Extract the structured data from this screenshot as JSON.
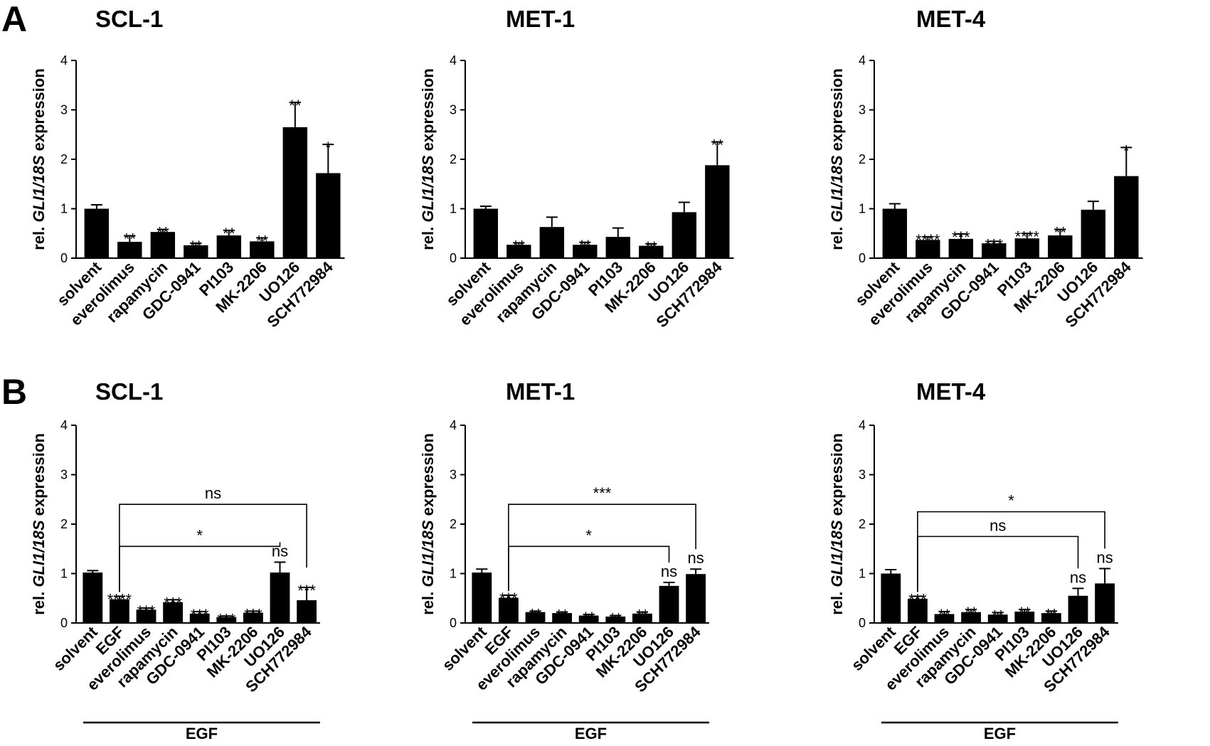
{
  "panels": [
    {
      "letter": "A"
    },
    {
      "letter": "B"
    }
  ],
  "chart_data": [
    {
      "panel": "A",
      "type": "bar",
      "title": "SCL-1",
      "ylabel_prefix": "rel. ",
      "ylabel_italic": "GLI1/18S",
      "ylabel_suffix": " expression",
      "xlabel": "",
      "ylim": [
        0,
        4
      ],
      "yticks": [
        "0",
        "1",
        "2",
        "3",
        "4"
      ],
      "categories": [
        "solvent",
        "everolimus",
        "rapamycin",
        "GDC-0941",
        "PI103",
        "MK-2206",
        "UO126",
        "SCH772984"
      ],
      "values": [
        1.0,
        0.33,
        0.53,
        0.26,
        0.46,
        0.34,
        2.65,
        1.72
      ],
      "errors": [
        0.08,
        0.12,
        0.05,
        0.04,
        0.1,
        0.07,
        0.5,
        0.58
      ],
      "significance": [
        "",
        "**",
        "**",
        "**",
        "**",
        "**",
        "**",
        "*"
      ],
      "group_label": "",
      "group_start_index": null,
      "brackets": []
    },
    {
      "panel": "A",
      "type": "bar",
      "title": "MET-1",
      "ylabel_prefix": "rel. ",
      "ylabel_italic": "GLI1/18S",
      "ylabel_suffix": " expression",
      "xlabel": "",
      "ylim": [
        0,
        4
      ],
      "yticks": [
        "0",
        "1",
        "2",
        "3",
        "4"
      ],
      "categories": [
        "solvent",
        "everolimus",
        "rapamycin",
        "GDC-0941",
        "PI103",
        "MK-2206",
        "UO126",
        "SCH772984"
      ],
      "values": [
        1.0,
        0.27,
        0.63,
        0.27,
        0.43,
        0.25,
        0.93,
        1.88
      ],
      "errors": [
        0.05,
        0.04,
        0.2,
        0.05,
        0.18,
        0.04,
        0.2,
        0.47
      ],
      "significance": [
        "",
        "**",
        "",
        "**",
        "",
        "**",
        "",
        "**"
      ],
      "group_label": "",
      "group_start_index": null,
      "brackets": []
    },
    {
      "panel": "A",
      "type": "bar",
      "title": "MET-4",
      "ylabel_prefix": "rel. ",
      "ylabel_italic": "GLI1/18S",
      "ylabel_suffix": " expression",
      "xlabel": "",
      "ylim": [
        0,
        4
      ],
      "yticks": [
        "0",
        "1",
        "2",
        "3",
        "4"
      ],
      "categories": [
        "solvent",
        "everolimus",
        "rapamycin",
        "GDC-0941",
        "PI103",
        "MK-2206",
        "UO126",
        "SCH772984"
      ],
      "values": [
        1.0,
        0.37,
        0.39,
        0.3,
        0.4,
        0.46,
        0.98,
        1.66
      ],
      "errors": [
        0.1,
        0.06,
        0.1,
        0.04,
        0.1,
        0.12,
        0.17,
        0.58
      ],
      "significance": [
        "",
        "****",
        "***",
        "***",
        "****",
        "**",
        "",
        "*"
      ],
      "group_label": "",
      "group_start_index": null,
      "brackets": []
    },
    {
      "panel": "B",
      "type": "bar",
      "title": "SCL-1",
      "ylabel_prefix": "rel. ",
      "ylabel_italic": "GLI1/18S",
      "ylabel_suffix": " expression",
      "xlabel": "",
      "ylim": [
        0,
        4
      ],
      "yticks": [
        "0",
        "1",
        "2",
        "3",
        "4"
      ],
      "categories": [
        "solvent",
        "EGF",
        "everolimus",
        "rapamycin",
        "GDC-0941",
        "PI103",
        "MK-2206",
        "UO126",
        "SCH772984"
      ],
      "values": [
        1.02,
        0.48,
        0.27,
        0.42,
        0.19,
        0.12,
        0.21,
        1.02,
        0.46
      ],
      "errors": [
        0.04,
        0.06,
        0.03,
        0.05,
        0.04,
        0.02,
        0.03,
        0.21,
        0.26
      ],
      "significance": [
        "",
        "****",
        "***",
        "***",
        "***",
        "***",
        "***",
        "ns",
        "***"
      ],
      "group_label": "EGF",
      "group_start_index": 1,
      "brackets": [
        {
          "from": 1,
          "to": 7,
          "y": 1.55,
          "label": "*"
        },
        {
          "from": 1,
          "to": 8,
          "y": 2.4,
          "label": "ns"
        }
      ]
    },
    {
      "panel": "B",
      "type": "bar",
      "title": "MET-1",
      "ylabel_prefix": "rel. ",
      "ylabel_italic": "GLI1/18S",
      "ylabel_suffix": " expression",
      "xlabel": "",
      "ylim": [
        0,
        4
      ],
      "yticks": [
        "0",
        "1",
        "2",
        "3",
        "4"
      ],
      "categories": [
        "solvent",
        "EGF",
        "everolimus",
        "rapamycin",
        "GDC-0941",
        "PI103",
        "MK-2206",
        "UO126",
        "SCH772984"
      ],
      "values": [
        1.02,
        0.51,
        0.22,
        0.2,
        0.15,
        0.13,
        0.19,
        0.75,
        0.99
      ],
      "errors": [
        0.07,
        0.05,
        0.02,
        0.02,
        0.02,
        0.02,
        0.03,
        0.07,
        0.1
      ],
      "significance": [
        "",
        "***",
        "**",
        "**",
        "**",
        "**",
        "**",
        "ns",
        "ns"
      ],
      "group_label": "EGF",
      "group_start_index": 1,
      "brackets": [
        {
          "from": 1,
          "to": 7,
          "y": 1.55,
          "label": "*"
        },
        {
          "from": 1,
          "to": 8,
          "y": 2.4,
          "label": "***"
        }
      ]
    },
    {
      "panel": "B",
      "type": "bar",
      "title": "MET-4",
      "ylabel_prefix": "rel. ",
      "ylabel_italic": "GLI1/18S",
      "ylabel_suffix": " expression",
      "xlabel": "",
      "ylim": [
        0,
        4
      ],
      "yticks": [
        "0",
        "1",
        "2",
        "3",
        "4"
      ],
      "categories": [
        "solvent",
        "EGF",
        "everolimus",
        "rapamycin",
        "GDC-0941",
        "PI103",
        "MK-2206",
        "UO126",
        "SCH772984"
      ],
      "values": [
        1.0,
        0.49,
        0.18,
        0.22,
        0.17,
        0.23,
        0.2,
        0.55,
        0.8
      ],
      "errors": [
        0.08,
        0.05,
        0.05,
        0.05,
        0.04,
        0.04,
        0.04,
        0.15,
        0.3
      ],
      "significance": [
        "",
        "***",
        "**",
        "**",
        "**",
        "**",
        "**",
        "ns",
        "ns"
      ],
      "group_label": "EGF",
      "group_start_index": 1,
      "brackets": [
        {
          "from": 1,
          "to": 7,
          "y": 1.75,
          "label": "ns"
        },
        {
          "from": 1,
          "to": 8,
          "y": 2.25,
          "label": "*"
        }
      ]
    }
  ]
}
